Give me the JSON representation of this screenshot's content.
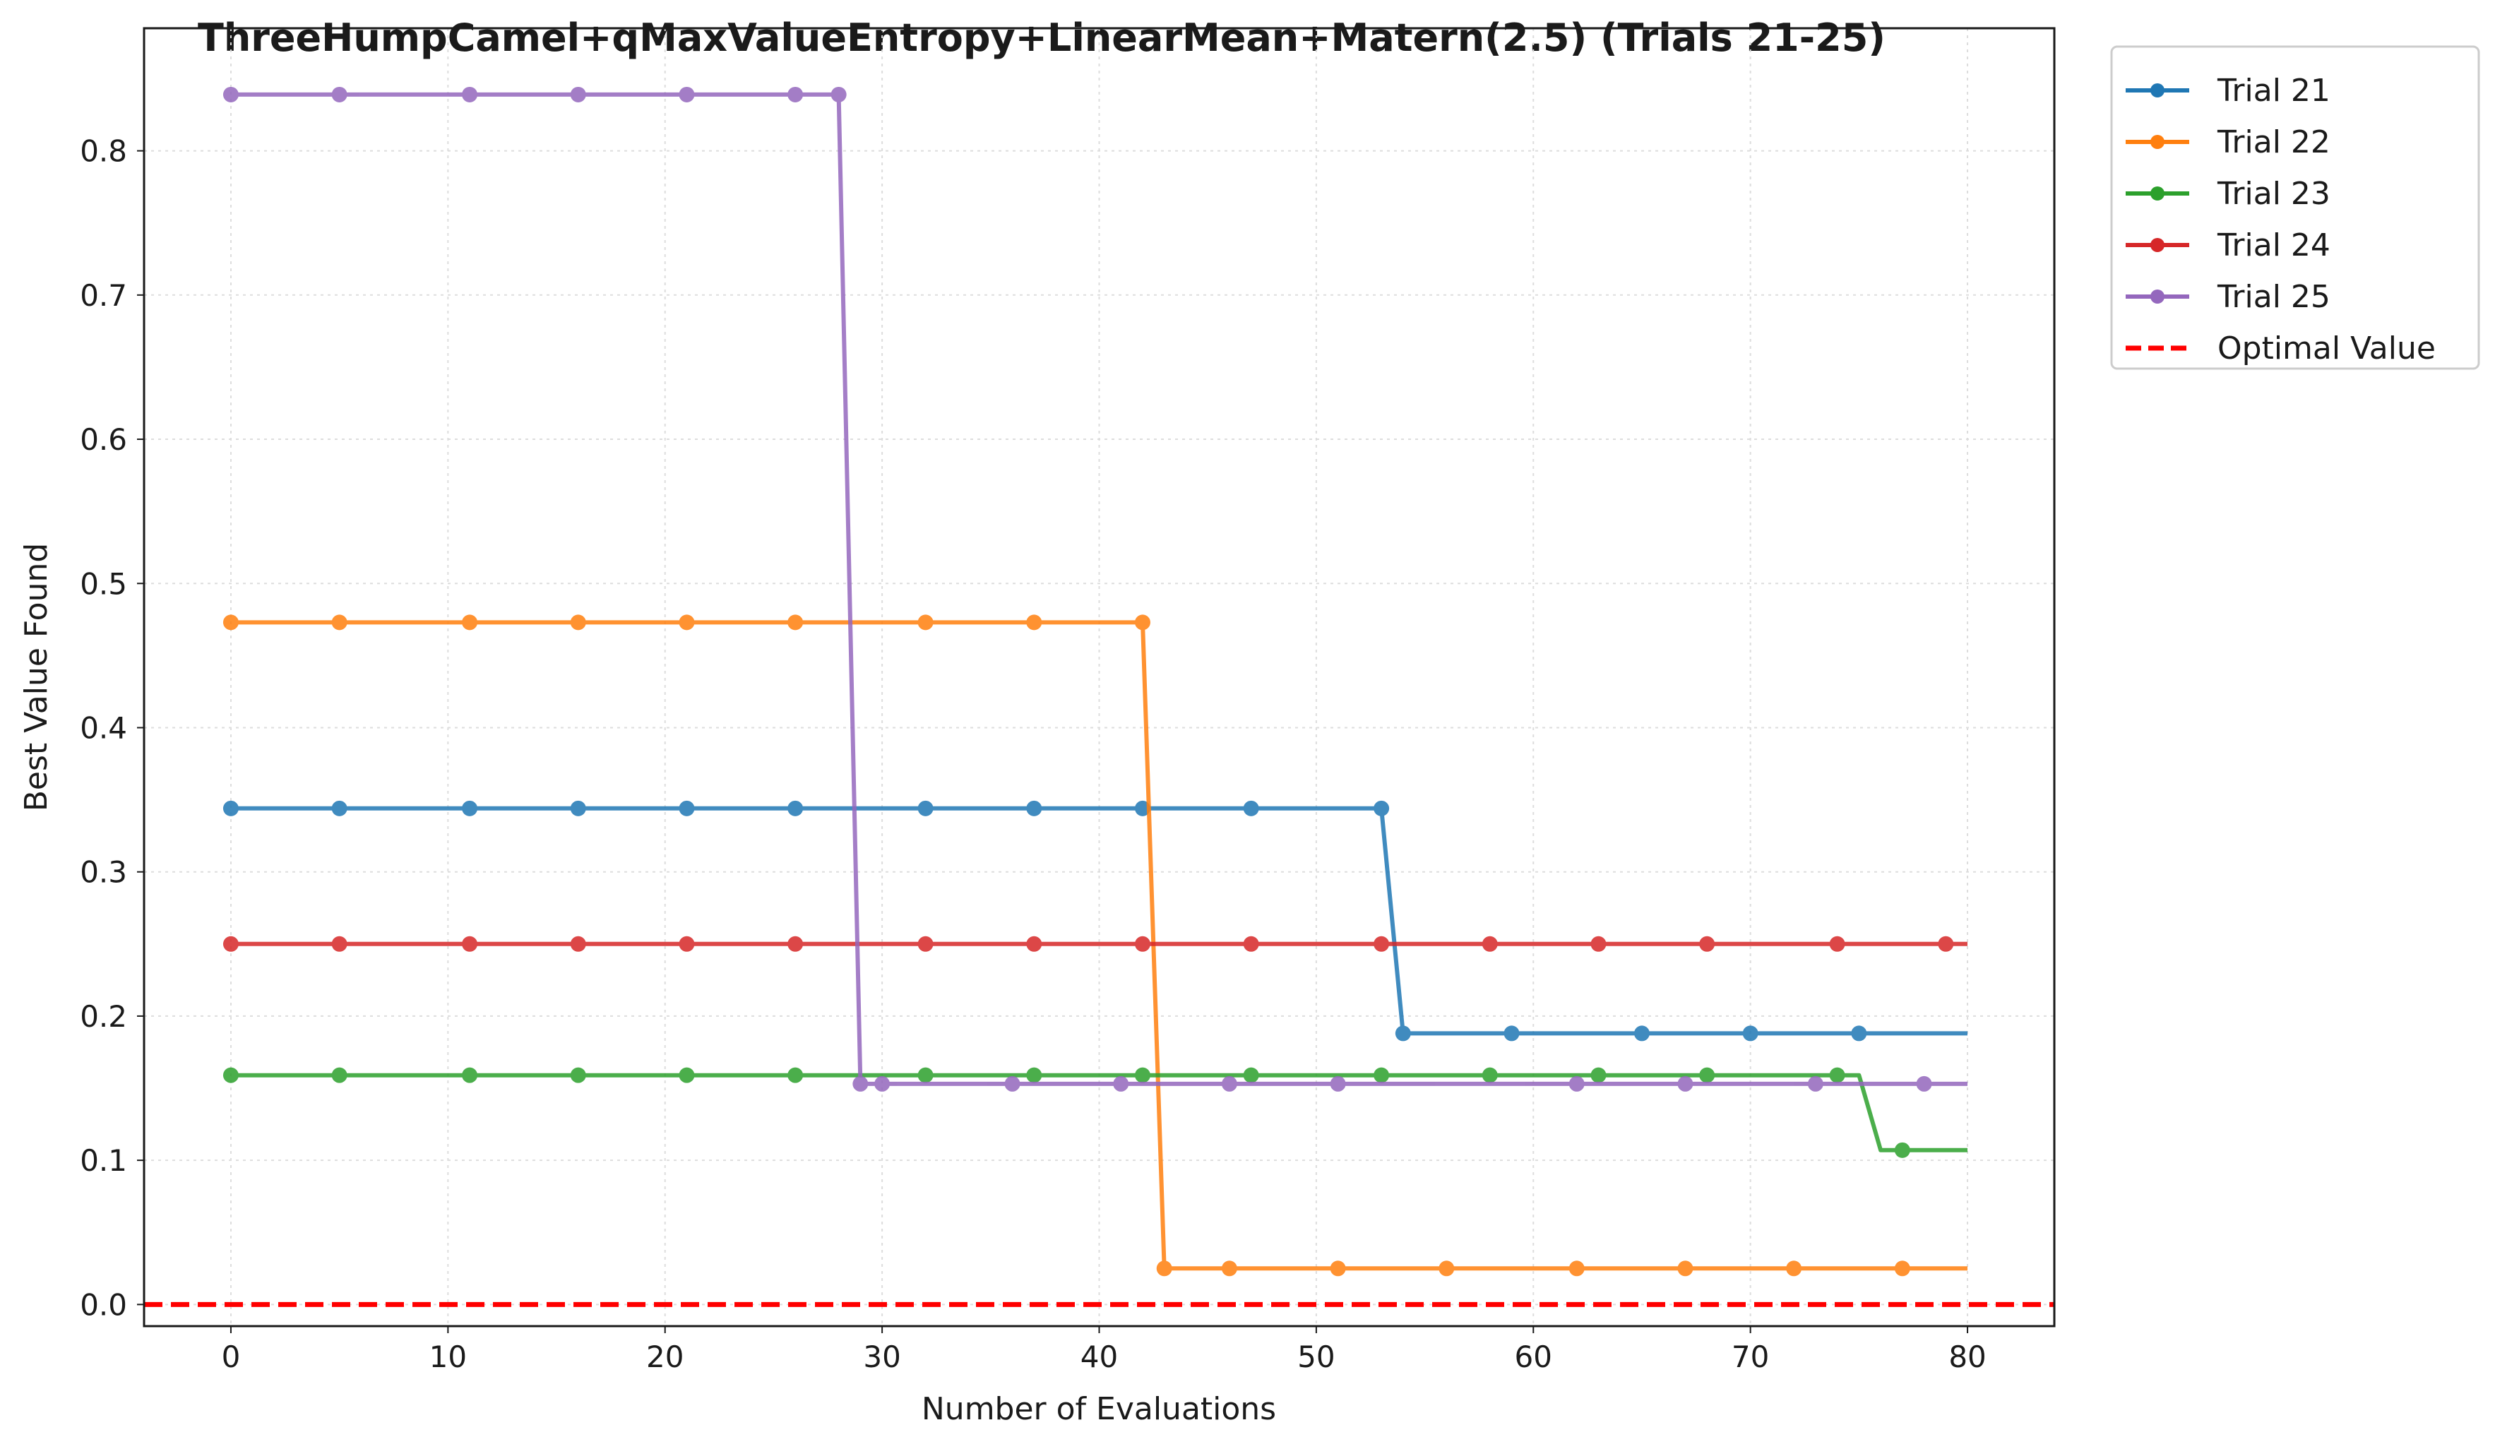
{
  "chart_data": {
    "type": "line",
    "title": "ThreeHumpCamel+qMaxValueEntropy+LinearMean+Matern(2.5) (Trials 21-25)",
    "xlabel": "Number of Evaluations",
    "ylabel": "Best Value Found",
    "xlim": [
      -4,
      84
    ],
    "ylim": [
      -0.015,
      0.885
    ],
    "xticks": [
      0,
      10,
      20,
      30,
      40,
      50,
      60,
      70,
      80
    ],
    "yticks": [
      0.0,
      0.1,
      0.2,
      0.3,
      0.4,
      0.5,
      0.6,
      0.7,
      0.8
    ],
    "ytick_labels": [
      "0.0",
      "0.1",
      "0.2",
      "0.3",
      "0.4",
      "0.5",
      "0.6",
      "0.7",
      "0.8"
    ],
    "grid": true,
    "legend_position": "outside-top-right",
    "series": [
      {
        "name": "Trial 21",
        "color": "#1f77b4",
        "values": [
          [
            0,
            0.344
          ],
          [
            53,
            0.344
          ],
          [
            54,
            0.188
          ],
          [
            80,
            0.188
          ]
        ],
        "markers_x": [
          0,
          5,
          11,
          16,
          21,
          26,
          32,
          37,
          42,
          47,
          53,
          54,
          59,
          65,
          70,
          75
        ]
      },
      {
        "name": "Trial 22",
        "color": "#ff7f0e",
        "values": [
          [
            0,
            0.473
          ],
          [
            42,
            0.473
          ],
          [
            43,
            0.025
          ],
          [
            80,
            0.025
          ]
        ],
        "markers_x": [
          0,
          5,
          11,
          16,
          21,
          26,
          32,
          37,
          42,
          43,
          46,
          51,
          56,
          62,
          67,
          72,
          77
        ]
      },
      {
        "name": "Trial 23",
        "color": "#2ca02c",
        "values": [
          [
            0,
            0.159
          ],
          [
            75,
            0.159
          ],
          [
            76,
            0.107
          ],
          [
            80,
            0.107
          ]
        ],
        "markers_x": [
          0,
          5,
          11,
          16,
          21,
          26,
          32,
          37,
          42,
          47,
          53,
          58,
          63,
          68,
          74,
          77
        ]
      },
      {
        "name": "Trial 24",
        "color": "#d62728",
        "values": [
          [
            0,
            0.25
          ],
          [
            80,
            0.25
          ]
        ],
        "markers_x": [
          0,
          5,
          11,
          16,
          21,
          26,
          32,
          37,
          42,
          47,
          53,
          58,
          63,
          68,
          74,
          79
        ]
      },
      {
        "name": "Trial 25",
        "color": "#9467bd",
        "values": [
          [
            0,
            0.839
          ],
          [
            28,
            0.839
          ],
          [
            29,
            0.153
          ],
          [
            80,
            0.153
          ]
        ],
        "markers_x": [
          0,
          5,
          11,
          16,
          21,
          26,
          28,
          29,
          30,
          36,
          41,
          46,
          51,
          62,
          67,
          73,
          78
        ]
      }
    ],
    "reference_line": {
      "name": "Optimal Value",
      "y": 0.0,
      "color": "#ff0000",
      "style": "dashed"
    }
  }
}
